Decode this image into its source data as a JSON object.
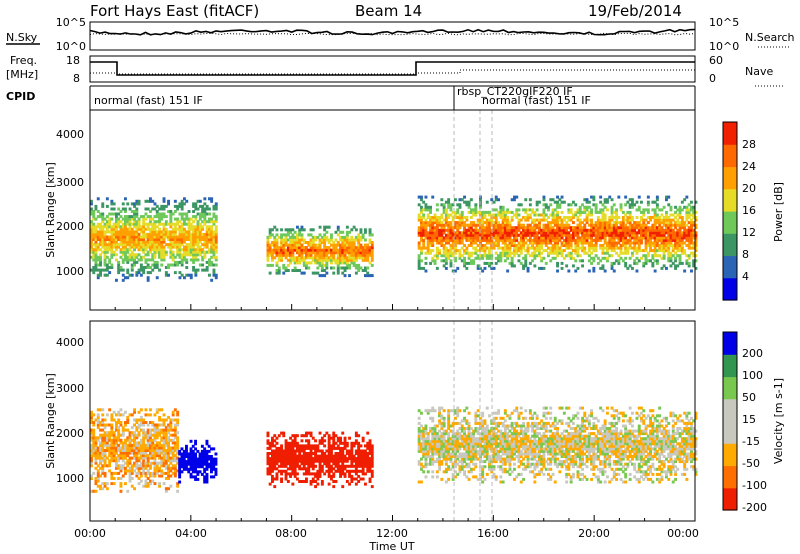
{
  "header": {
    "station": "Fort Hays East (fitACF)",
    "beam": "Beam 14",
    "date": "19/Feb/2014"
  },
  "noise_panel": {
    "left_label": "N.Sky",
    "right_label": "N.Search",
    "left_ticks": [
      "10^5",
      "10^0"
    ],
    "right_ticks": [
      "10^5",
      "10^0"
    ]
  },
  "freq_panel": {
    "left_label_1": "Freq.",
    "left_label_2": "[MHz]",
    "right_label": "Nave",
    "left_ticks": [
      "18",
      "8"
    ],
    "right_ticks": [
      "60",
      "0"
    ]
  },
  "cpid_panel": {
    "label": "CPID",
    "modes": [
      "normal (fast) 151 IF",
      "rbsp_CT220gIF220 IF",
      "normal (fast) 151 IF"
    ]
  },
  "power_panel": {
    "ylabel": "Slant Range [km]",
    "yticks": [
      "4000",
      "3000",
      "2000",
      "1000"
    ],
    "colorbar_label": "Power [dB]",
    "colorbar_ticks": [
      "28",
      "24",
      "20",
      "16",
      "12",
      "8",
      "4"
    ]
  },
  "velocity_panel": {
    "ylabel": "Slant Range [km]",
    "yticks": [
      "4000",
      "3000",
      "2000",
      "1000"
    ],
    "colorbar_label": "Velocity [m s-1]",
    "colorbar_ticks": [
      "200",
      "100",
      "50",
      "15",
      "-15",
      "-50",
      "-100",
      "-200"
    ]
  },
  "xaxis": {
    "label": "Time UT",
    "ticks": [
      "00:00",
      "04:00",
      "08:00",
      "12:00",
      "16:00",
      "20:00",
      "00:00"
    ]
  },
  "colors": {
    "power_scale": [
      "#0000e8",
      "#2a64b4",
      "#3c9664",
      "#6ec85a",
      "#e6dc28",
      "#ffa000",
      "#ff6a00",
      "#f02000"
    ],
    "velocity_scale": [
      "#f01e00",
      "#ff6e00",
      "#ffaa00",
      "#c8c8be",
      "#c8c8be",
      "#78c850",
      "#329650",
      "#0000e8"
    ]
  },
  "chart_data": [
    {
      "type": "heatmap",
      "title": "Fort Hays East (fitACF) Beam 14 19/Feb/2014",
      "quantity": "Power",
      "unit": "dB",
      "xlabel": "Time UT",
      "ylabel": "Slant Range [km]",
      "xlim_hours": [
        0,
        24
      ],
      "ylim_km": [
        180,
        4500
      ],
      "zlim": [
        0,
        32
      ],
      "echo_regions": [
        {
          "t_start": 0.0,
          "t_end": 5.0,
          "r_low": 800,
          "r_high": 2600,
          "peak_db": 24
        },
        {
          "t_start": 7.0,
          "t_end": 11.2,
          "r_low": 900,
          "r_high": 2000,
          "peak_db": 28
        },
        {
          "t_start": 13.0,
          "t_end": 24.0,
          "r_low": 1000,
          "r_high": 2600,
          "peak_db": 30
        }
      ]
    },
    {
      "type": "heatmap",
      "quantity": "Velocity",
      "unit": "m s-1",
      "xlabel": "Time UT",
      "ylabel": "Slant Range [km]",
      "xlim_hours": [
        0,
        24
      ],
      "ylim_km": [
        180,
        4500
      ],
      "zlim": [
        -200,
        200
      ],
      "echo_regions": [
        {
          "t_start": 0.0,
          "t_end": 3.5,
          "r_low": 800,
          "r_high": 2600,
          "velocity": -30
        },
        {
          "t_start": 3.5,
          "t_end": 5.0,
          "r_low": 1000,
          "r_high": 1900,
          "velocity": 200
        },
        {
          "t_start": 7.0,
          "t_end": 11.2,
          "r_low": 900,
          "r_high": 2100,
          "velocity": -150
        },
        {
          "t_start": 13.0,
          "t_end": 24.0,
          "r_low": 1000,
          "r_high": 2600,
          "velocity": -5
        }
      ]
    }
  ]
}
